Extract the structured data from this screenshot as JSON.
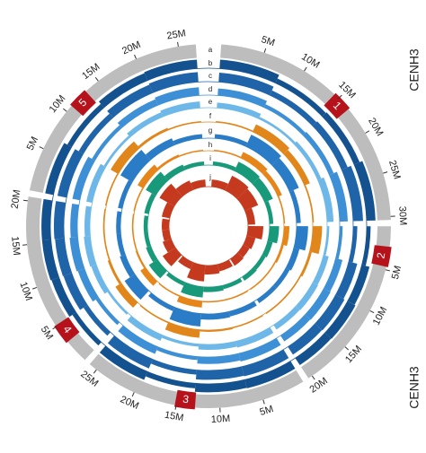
{
  "chart_data": {
    "type": "circos",
    "ideogram_color": "#bdbdbd",
    "centromere_color": "#b5121b",
    "chromosomes": [
      {
        "name": "1",
        "length": 30.4,
        "centromere": 15.5,
        "ticks": [
          {
            "value": 5,
            "label": "5M"
          },
          {
            "value": 10,
            "label": "10M"
          },
          {
            "value": 15,
            "label": "15M"
          },
          {
            "value": 20,
            "label": "20M"
          },
          {
            "value": 25,
            "label": "25M"
          },
          {
            "value": 30,
            "label": "30M"
          }
        ]
      },
      {
        "name": "2",
        "length": 20.5,
        "centromere": 3.5,
        "ticks": [
          {
            "value": 5,
            "label": "5M"
          },
          {
            "value": 10,
            "label": "10M"
          },
          {
            "value": 15,
            "label": "15M"
          },
          {
            "value": 20,
            "label": "20M"
          }
        ]
      },
      {
        "name": "3",
        "length": 26,
        "centromere": 14,
        "ticks": [
          {
            "value": 5,
            "label": "5M"
          },
          {
            "value": 10,
            "label": "10M"
          },
          {
            "value": 15,
            "label": "15M"
          },
          {
            "value": 20,
            "label": "20M"
          },
          {
            "value": 25,
            "label": "25M"
          }
        ]
      },
      {
        "name": "4",
        "length": 20.5,
        "centromere": 4,
        "ticks": [
          {
            "value": 5,
            "label": "5M"
          },
          {
            "value": 10,
            "label": "10M"
          },
          {
            "value": 15,
            "label": "15M"
          },
          {
            "value": 20,
            "label": "20M"
          }
        ]
      },
      {
        "name": "5",
        "length": 27,
        "centromere": 12,
        "ticks": [
          {
            "value": 5,
            "label": "5M"
          },
          {
            "value": 10,
            "label": "10M"
          },
          {
            "value": 15,
            "label": "15M"
          },
          {
            "value": 20,
            "label": "20M"
          },
          {
            "value": 25,
            "label": "25M"
          }
        ]
      }
    ],
    "track_labels": [
      "a",
      "b",
      "c",
      "d",
      "e",
      "f",
      "g",
      "h",
      "i",
      "j"
    ],
    "ylim": [
      0,
      1
    ],
    "tracks": [
      {
        "color": "#14528f",
        "values": [
          0.9,
          0.5,
          0.6,
          0.9,
          0.4,
          0.8,
          0.9,
          0.85,
          0.9,
          0.85,
          0.5,
          0.9,
          0.45,
          0.8,
          0.9,
          0.9,
          0.85,
          0.5,
          0.8,
          0.9
        ]
      },
      {
        "color": "#1f63a8",
        "values": [
          0.8,
          0.45,
          0.55,
          0.85,
          0.35,
          0.75,
          0.85,
          0.8,
          0.85,
          0.8,
          0.4,
          0.85,
          0.4,
          0.75,
          0.8,
          0.85,
          0.8,
          0.45,
          0.75,
          0.85
        ]
      },
      {
        "color": "#3d8fd6",
        "values": [
          0.6,
          0.3,
          0.4,
          0.7,
          0.25,
          0.6,
          0.65,
          0.6,
          0.7,
          0.6,
          0.3,
          0.65,
          0.3,
          0.6,
          0.7,
          0.6,
          0.65,
          0.3,
          0.55,
          0.7
        ]
      },
      {
        "color": "#6db8e8",
        "values": [
          0.5,
          0.2,
          0.35,
          0.6,
          0.2,
          0.5,
          0.55,
          0.5,
          0.6,
          0.5,
          0.25,
          0.55,
          0.2,
          0.5,
          0.6,
          0.5,
          0.55,
          0.2,
          0.45,
          0.6
        ]
      },
      {
        "color": "#e0861a",
        "values": [
          0.1,
          0.7,
          0.5,
          0.1,
          0.8,
          0.2,
          0.1,
          0.1,
          0.1,
          0.15,
          0.7,
          0.1,
          0.6,
          0.2,
          0.1,
          0.1,
          0.1,
          0.75,
          0.2,
          0.1
        ]
      },
      {
        "color": "#2a7cc6",
        "values": [
          0.3,
          0.9,
          0.7,
          0.3,
          0.8,
          0.4,
          0.3,
          0.3,
          0.35,
          0.4,
          0.9,
          0.3,
          0.85,
          0.4,
          0.3,
          0.3,
          0.3,
          0.95,
          0.5,
          0.3
        ]
      },
      {
        "color": "#e6861a",
        "values": [
          0.1,
          0.6,
          0.4,
          0.1,
          0.5,
          0.2,
          0.1,
          0.1,
          0.1,
          0.1,
          0.6,
          0.1,
          0.55,
          0.15,
          0.1,
          0.1,
          0.1,
          0.6,
          0.2,
          0.1
        ]
      },
      {
        "color": "#189a7a",
        "values": [
          0.3,
          0.8,
          0.7,
          0.3,
          0.75,
          0.4,
          0.3,
          0.35,
          0.3,
          0.4,
          0.85,
          0.3,
          0.8,
          0.4,
          0.3,
          0.3,
          0.35,
          0.9,
          0.45,
          0.3
        ]
      },
      {
        "color": "#c53a1f",
        "values": [
          0.4,
          0.9,
          0.8,
          0.4,
          0.85,
          0.5,
          0.4,
          0.45,
          0.4,
          0.5,
          0.9,
          0.4,
          0.85,
          0.5,
          0.4,
          0.4,
          0.45,
          0.95,
          0.55,
          0.4
        ]
      }
    ],
    "side_labels": [
      "CENH3",
      "CENH3"
    ]
  }
}
